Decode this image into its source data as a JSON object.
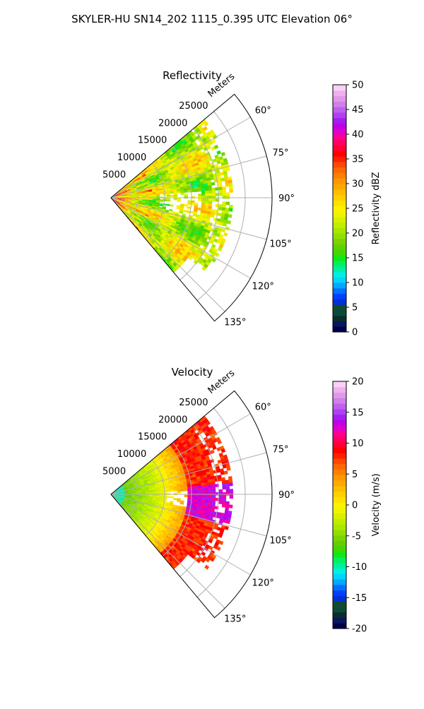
{
  "figure": {
    "suptitle": "SKYLER-HU  SN14_202  1115_0.395 UTC Elevation 06°"
  },
  "chart_data": [
    {
      "type": "heatmap",
      "projection": "polar",
      "title": "Reflectivity",
      "radial_axis_label": "Meters",
      "radial_ticks": [
        5000,
        10000,
        15000,
        20000,
        25000
      ],
      "radial_tick_labels": [
        "5000",
        "10000",
        "15000",
        "20000",
        "25000"
      ],
      "rlim": [
        0,
        30000
      ],
      "theta_ticks_deg": [
        60,
        75,
        90,
        105,
        120,
        135
      ],
      "theta_tick_labels": [
        "60°",
        "75°",
        "90°",
        "105°",
        "120°",
        "135°"
      ],
      "theta_range_deg": [
        50,
        140
      ],
      "grid": true,
      "colorbar": {
        "label": "Reflectivity dBZ",
        "vmin": 0,
        "vmax": 50,
        "ticks": [
          0,
          5,
          10,
          15,
          20,
          25,
          30,
          35,
          40,
          45,
          50
        ],
        "tick_labels": [
          "0",
          "5",
          "10",
          "15",
          "20",
          "25",
          "30",
          "35",
          "40",
          "45",
          "50"
        ],
        "colors": [
          "#00004a",
          "#0a1560",
          "#0b2e2a",
          "#0b4a3a",
          "#124a30",
          "#002fd8",
          "#0040ff",
          "#0070ff",
          "#00a8ff",
          "#00d4ff",
          "#00f0e0",
          "#00f0a0",
          "#00f060",
          "#12e812",
          "#40d800",
          "#60d000",
          "#7ad400",
          "#8fe000",
          "#a8e800",
          "#c0ee00",
          "#d8f000",
          "#eef400",
          "#fff000",
          "#ffe000",
          "#ffd000",
          "#ffbc00",
          "#ffa800",
          "#ff9800",
          "#ff8000",
          "#ff6800",
          "#ff4800",
          "#ff2000",
          "#ff0000",
          "#ff0030",
          "#ff0060",
          "#ff0090",
          "#e000c8",
          "#c000e8",
          "#a020f0",
          "#b040f0",
          "#c060f0",
          "#d080e8",
          "#e098e8",
          "#f0b0f0",
          "#f8d0f8"
        ],
        "position": "right"
      },
      "notes": "Reflectivity mostly 15-25 dBZ (green/yellow) across the sector, with 30-38 dBZ (orange/red) near the radar and along spokes; clear-air gaps near 90°-105° at mid range; data extends to ~22000 m."
    },
    {
      "type": "heatmap",
      "projection": "polar",
      "title": "Velocity",
      "radial_axis_label": "Meters",
      "radial_ticks": [
        5000,
        10000,
        15000,
        20000,
        25000
      ],
      "radial_tick_labels": [
        "5000",
        "10000",
        "15000",
        "20000",
        "25000"
      ],
      "rlim": [
        0,
        30000
      ],
      "theta_ticks_deg": [
        60,
        75,
        90,
        105,
        120,
        135
      ],
      "theta_tick_labels": [
        "60°",
        "75°",
        "90°",
        "105°",
        "120°",
        "135°"
      ],
      "theta_range_deg": [
        50,
        140
      ],
      "grid": true,
      "colorbar": {
        "label": "Velocity (m/s)",
        "vmin": -20,
        "vmax": 20,
        "ticks": [
          -20,
          -15,
          -10,
          -5,
          0,
          5,
          10,
          15,
          20
        ],
        "tick_labels": [
          "-20",
          "-15",
          "-10",
          "-5",
          "0",
          "5",
          "10",
          "15",
          "20"
        ],
        "colors": [
          "#00004a",
          "#0a1560",
          "#0b2e2a",
          "#0b4a3a",
          "#124a30",
          "#002fd8",
          "#0040ff",
          "#0070ff",
          "#00a8ff",
          "#00d4ff",
          "#00f0e0",
          "#00f0a0",
          "#00f060",
          "#12e812",
          "#40d800",
          "#60d000",
          "#7ad400",
          "#8fe000",
          "#a8e800",
          "#c0ee00",
          "#d8f000",
          "#eef400",
          "#fff000",
          "#ffe000",
          "#ffd000",
          "#ffbc00",
          "#ffa800",
          "#ff9800",
          "#ff8000",
          "#ff6800",
          "#ff4800",
          "#ff2000",
          "#ff0000",
          "#ff0030",
          "#ff0060",
          "#ff0090",
          "#e000c8",
          "#c000e8",
          "#a020f0",
          "#b040f0",
          "#c060f0",
          "#d080e8",
          "#e098e8",
          "#f0b0f0",
          "#f8d0f8"
        ],
        "position": "right"
      },
      "notes": "Velocity near -10 m/s (cyan) close to radar, -5 (green) at short range, 0 to 5 (yellow/orange) at mid range, 8-10 (red) near 60-75° and 110-125° far range, 13-15 (magenta) near 90-105° far range."
    }
  ]
}
